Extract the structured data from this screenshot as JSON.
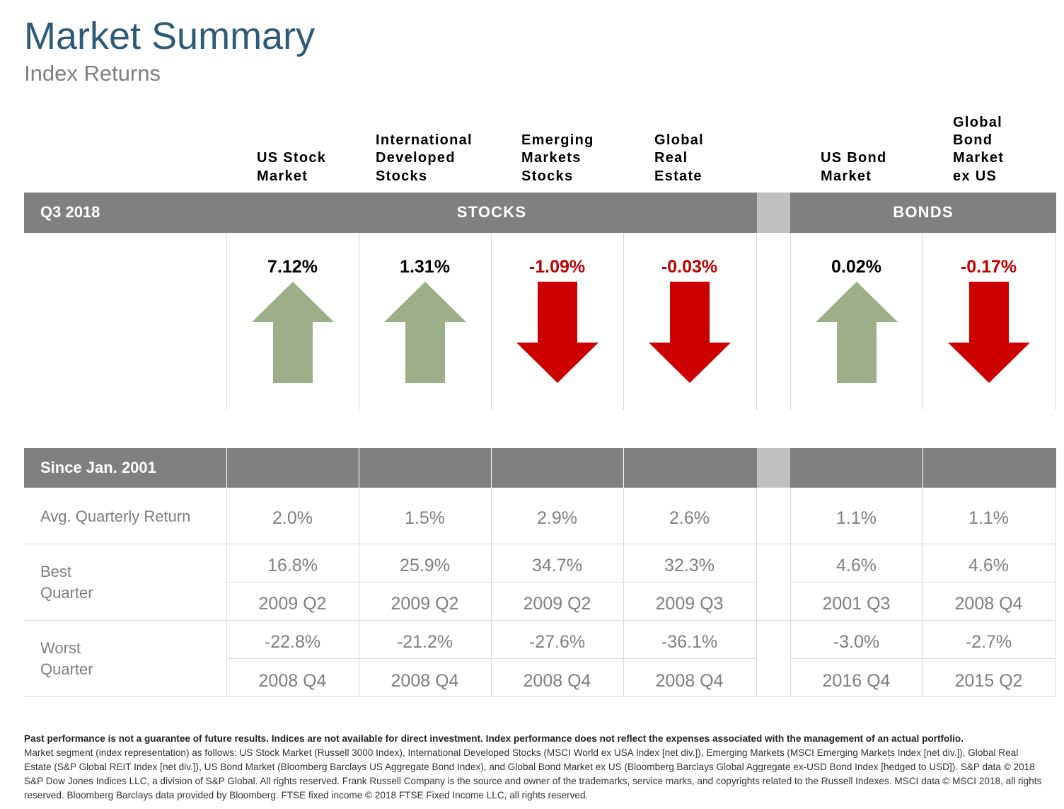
{
  "title": "Market Summary",
  "subtitle": "Index Returns",
  "columns": [
    {
      "lines": [
        "US Stock",
        "Market"
      ],
      "return": "7.12%",
      "direction": "up",
      "avg": "2.0%",
      "best": "16.8%",
      "best_q": "2009 Q2",
      "worst": "-22.8%",
      "worst_q": "2008 Q4"
    },
    {
      "lines": [
        "International",
        "Developed",
        "Stocks"
      ],
      "return": "1.31%",
      "direction": "up",
      "avg": "1.5%",
      "best": "25.9%",
      "best_q": "2009 Q2",
      "worst": "-21.2%",
      "worst_q": "2008 Q4"
    },
    {
      "lines": [
        "Emerging",
        "Markets",
        "Stocks"
      ],
      "return": "-1.09%",
      "direction": "down",
      "avg": "2.9%",
      "best": "34.7%",
      "best_q": "2009 Q2",
      "worst": "-27.6%",
      "worst_q": "2008 Q4"
    },
    {
      "lines": [
        "Global",
        "Real",
        "Estate"
      ],
      "return": "-0.03%",
      "direction": "down",
      "avg": "2.6%",
      "best": "32.3%",
      "best_q": "2009 Q3",
      "worst": "-36.1%",
      "worst_q": "2008 Q4"
    },
    {
      "lines": [
        "US Bond",
        "Market"
      ],
      "return": "0.02%",
      "direction": "up",
      "avg": "1.1%",
      "best": "4.6%",
      "best_q": "2001 Q3",
      "worst": "-3.0%",
      "worst_q": "2016 Q4"
    },
    {
      "lines": [
        "Global",
        "Bond",
        "Market",
        "ex US"
      ],
      "return": "-0.17%",
      "direction": "down",
      "avg": "1.1%",
      "best": "4.6%",
      "best_q": "2008 Q4",
      "worst": "-2.7%",
      "worst_q": "2015 Q2"
    }
  ],
  "period_bar": {
    "period": "Q3 2018",
    "stocks": "STOCKS",
    "bonds": "BONDS"
  },
  "since_bar": {
    "label": "Since Jan. 2001"
  },
  "rows": {
    "avg_label": "Avg. Quarterly Return",
    "best_label": [
      "Best",
      "Quarter"
    ],
    "worst_label": [
      "Worst",
      "Quarter"
    ]
  },
  "colors": {
    "up_arrow": "#9caf88",
    "down_arrow": "#cc0000",
    "negative_text": "#c00000",
    "bar": "#808080",
    "title": "#2e5a78"
  },
  "footnote": {
    "bold": "Past performance is not a guarantee of future results. Indices are not available for direct investment. Index performance does not reflect the expenses associated with the management of an actual portfolio.",
    "text": "Market segment (index representation) as follows: US Stock Market (Russell 3000 Index), International Developed Stocks (MSCI World ex USA Index [net div.]), Emerging Markets (MSCI Emerging Markets Index [net div.]), Global Real Estate (S&P Global REIT Index [net div.]), US Bond Market (Bloomberg Barclays US Aggregate Bond Index), and Global Bond Market ex US (Bloomberg Barclays Global Aggregate ex-USD Bond Index [hedged to USD]). S&P data © 2018 S&P Dow Jones Indices LLC, a division of S&P Global. All rights reserved. Frank Russell Company is the source and owner of the trademarks, service marks, and copyrights related to the Russell Indexes. MSCI data © MSCI 2018, all rights reserved. Bloomberg Barclays data provided by Bloomberg. FTSE fixed income © 2018 FTSE Fixed Income LLC, all rights reserved."
  }
}
